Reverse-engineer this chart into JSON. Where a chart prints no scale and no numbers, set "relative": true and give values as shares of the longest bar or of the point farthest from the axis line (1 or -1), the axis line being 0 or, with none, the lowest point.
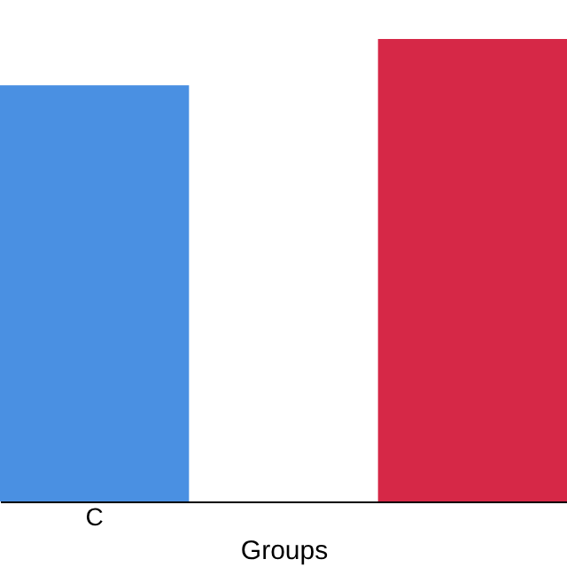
{
  "chart_data": {
    "type": "bar",
    "xlabel": "Groups",
    "relative": true,
    "categories": [
      "C",
      null
    ],
    "values": [
      0.9,
      1
    ],
    "colors": [
      "#4a90e2",
      "#d62847"
    ]
  }
}
